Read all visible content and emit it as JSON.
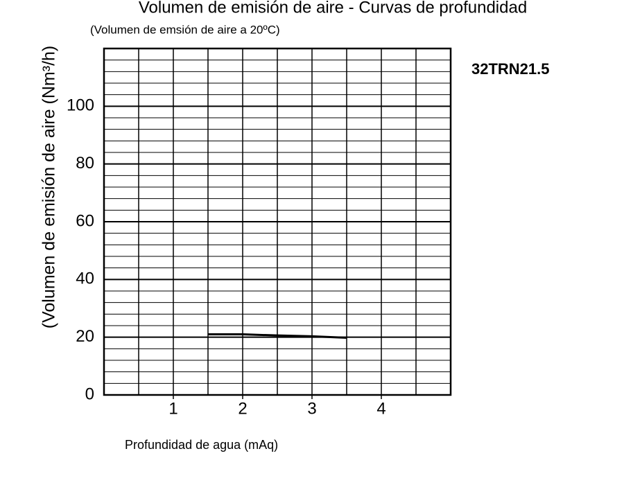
{
  "chart_data": {
    "type": "line",
    "title": "Volumen de emisión de aire - Curvas de profundidad",
    "subtitle": "(Volumen de emsión de aire a 20ºC)",
    "x_label": "Profundidad de agua (mAq)",
    "y_label": "(Volumen de emisión de aire (Nm³/h)",
    "annotation": "32TRN21.5",
    "x": [
      1.5,
      2,
      2.5,
      3,
      3.5
    ],
    "series": [
      {
        "name": "32TRN21.5",
        "color": "#000000",
        "values": [
          21,
          21,
          20.6,
          20.3,
          19.8
        ]
      }
    ],
    "xlim": [
      0,
      5
    ],
    "ylim": [
      0,
      120
    ],
    "xticks": [
      1,
      2,
      3,
      4
    ],
    "yticks": [
      0,
      20,
      40,
      60,
      80,
      100
    ],
    "xgrid": [
      0.5,
      1,
      1.5,
      2,
      2.5,
      3,
      3.5,
      4,
      4.5
    ],
    "ygrid": [
      4,
      8,
      12,
      16,
      20,
      24,
      28,
      32,
      36,
      40,
      44,
      48,
      52,
      56,
      60,
      64,
      68,
      72,
      76,
      80,
      84,
      88,
      92,
      96,
      100,
      104,
      108,
      112,
      116
    ],
    "grid": true
  }
}
